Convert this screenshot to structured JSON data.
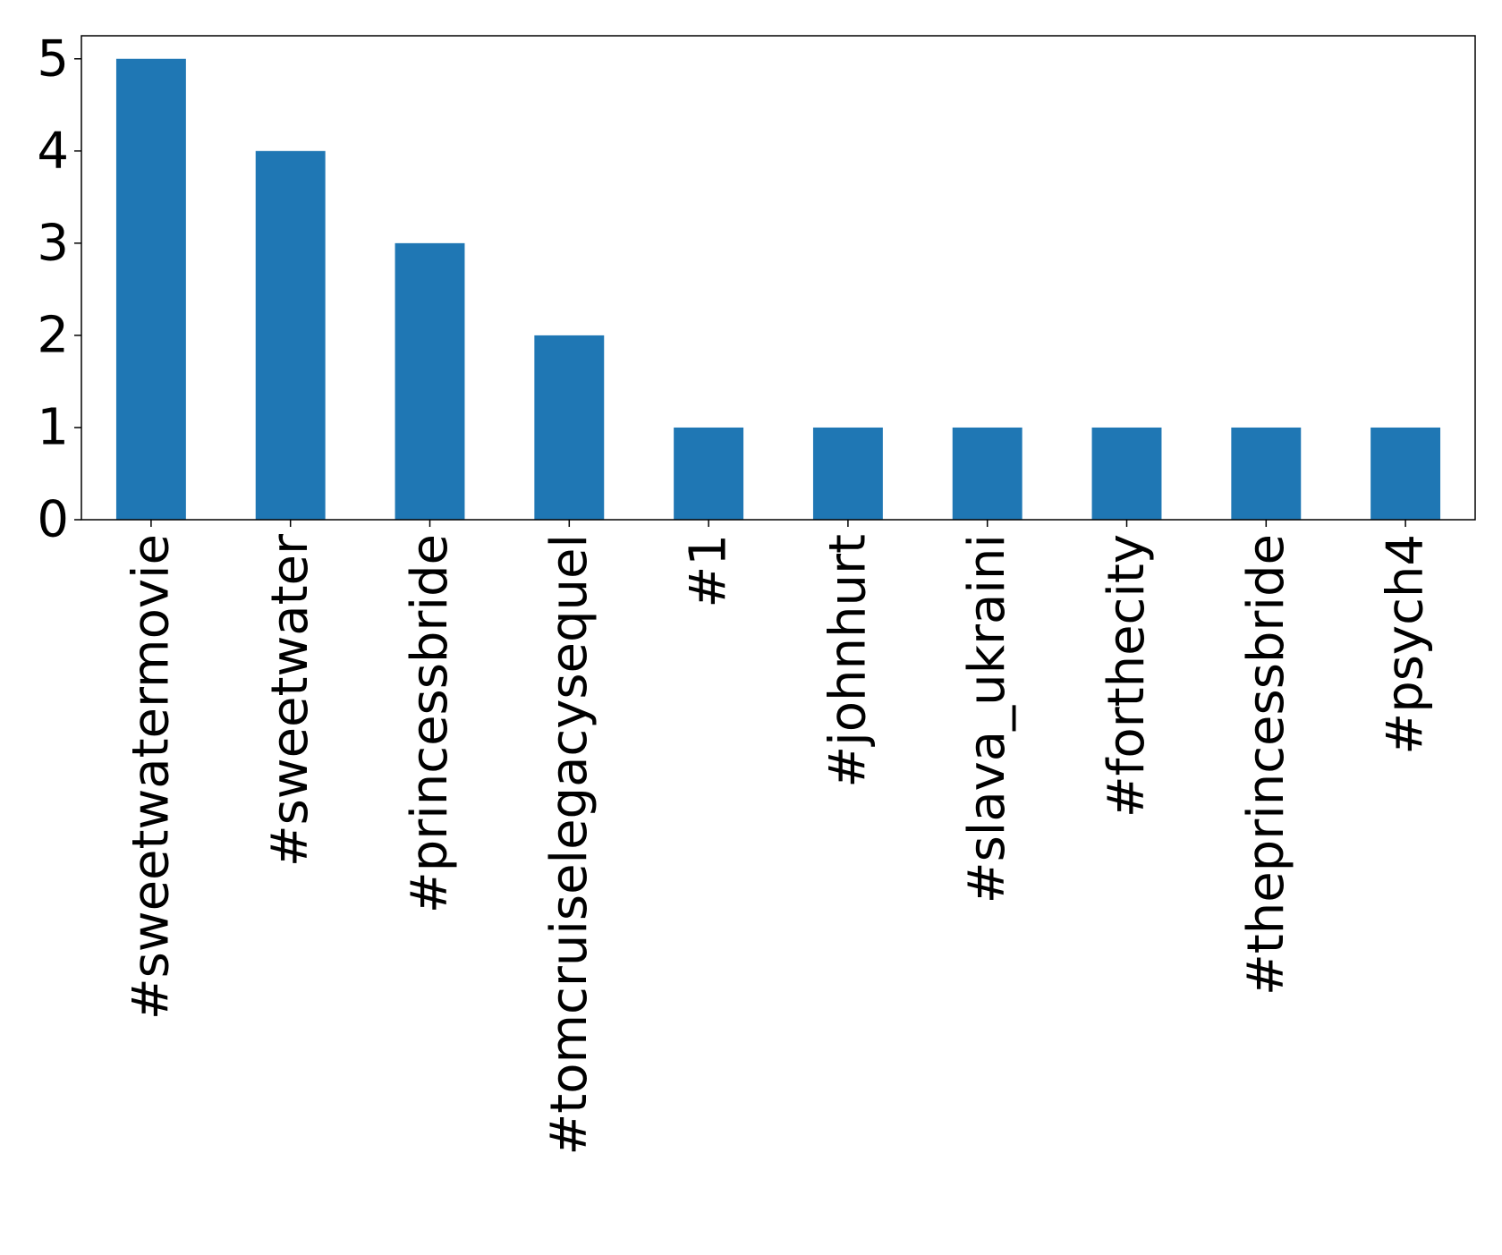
{
  "chart_data": {
    "type": "bar",
    "title": "",
    "xlabel": "",
    "ylabel": "",
    "categories": [
      "#sweetwatermovie",
      "#sweetwater",
      "#princessbride",
      "#tomcruiselegacysequel",
      "#1",
      "#johnhurt",
      "#slava_ukraini",
      "#forthecity",
      "#theprincessbride",
      "#psych4"
    ],
    "values": [
      5,
      4,
      3,
      2,
      1,
      1,
      1,
      1,
      1,
      1
    ],
    "ylim": [
      0,
      5.25
    ],
    "yticks": [
      0,
      1,
      2,
      3,
      4,
      5
    ],
    "grid": false,
    "legend": "none",
    "bar_color": "#1f77b4",
    "x_tick_rotation": "vertical"
  }
}
